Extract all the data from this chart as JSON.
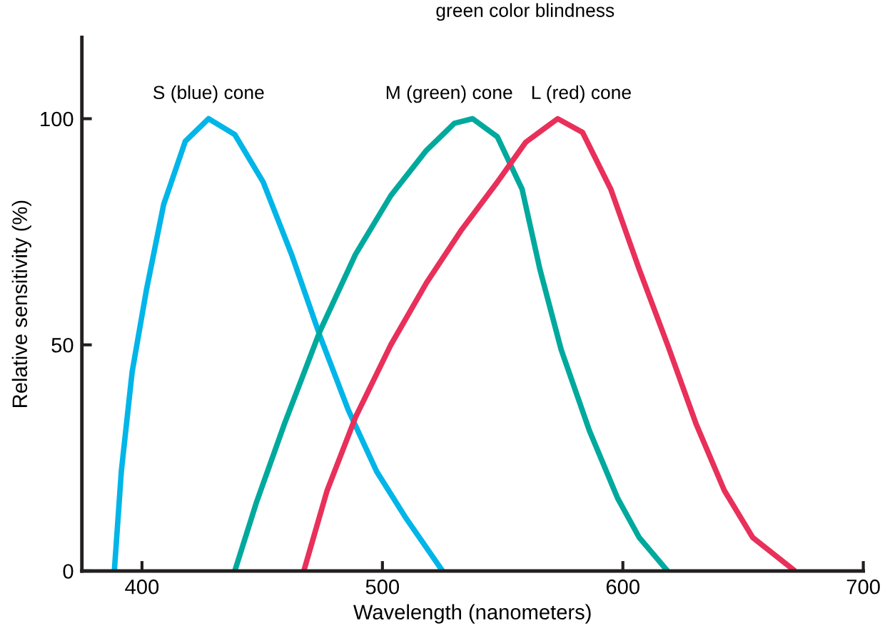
{
  "chart_data": {
    "type": "line",
    "title": "green color blindness",
    "xlabel": "Wavelength (nanometers)",
    "ylabel": "Relative sensitivity (%)",
    "xlim": [
      375,
      700
    ],
    "ylim": [
      0,
      118
    ],
    "xticks": [
      400,
      500,
      600,
      700
    ],
    "yticks": [
      0,
      50,
      100
    ],
    "grid": false,
    "legend": false,
    "marker": "none",
    "line_style": "solid",
    "series": [
      {
        "name": "S (blue) cone",
        "color": "#00b5e8",
        "x": [
          388.5,
          391.4,
          395.9,
          401.8,
          409,
          418,
          427.7,
          438.6,
          450.4,
          462.2,
          474,
          485.8,
          497.6,
          509.4,
          525
        ],
        "values": [
          0,
          22,
          44,
          62,
          81,
          95,
          100,
          96.5,
          86,
          70,
          52,
          35.6,
          22,
          12,
          0
        ]
      },
      {
        "name": "M (green) cone",
        "color": "#00a99d",
        "x": [
          438.6,
          447.5,
          459.3,
          474,
          488.8,
          503.5,
          518.3,
          530,
          537.5,
          547.8,
          558.1,
          565.5,
          574.3,
          586.1,
          597.9,
          606.8,
          618.6
        ],
        "values": [
          0,
          15,
          32.6,
          53,
          70,
          83,
          93,
          99,
          100,
          96,
          84.4,
          66.7,
          49,
          31,
          16,
          7.4,
          0
        ]
      },
      {
        "name": "L (red) cone",
        "color": "#e8305a",
        "x": [
          467.3,
          477,
          488.8,
          503.5,
          518.3,
          533,
          547.8,
          559.6,
          572.9,
          583.2,
          595,
          606.8,
          618.6,
          630.4,
          642.2,
          654,
          671.6
        ],
        "values": [
          0,
          17.8,
          34,
          50,
          63.7,
          75.5,
          86,
          94.8,
          100,
          97,
          84.4,
          66.7,
          50,
          32.6,
          17.8,
          7.4,
          0
        ]
      }
    ]
  }
}
